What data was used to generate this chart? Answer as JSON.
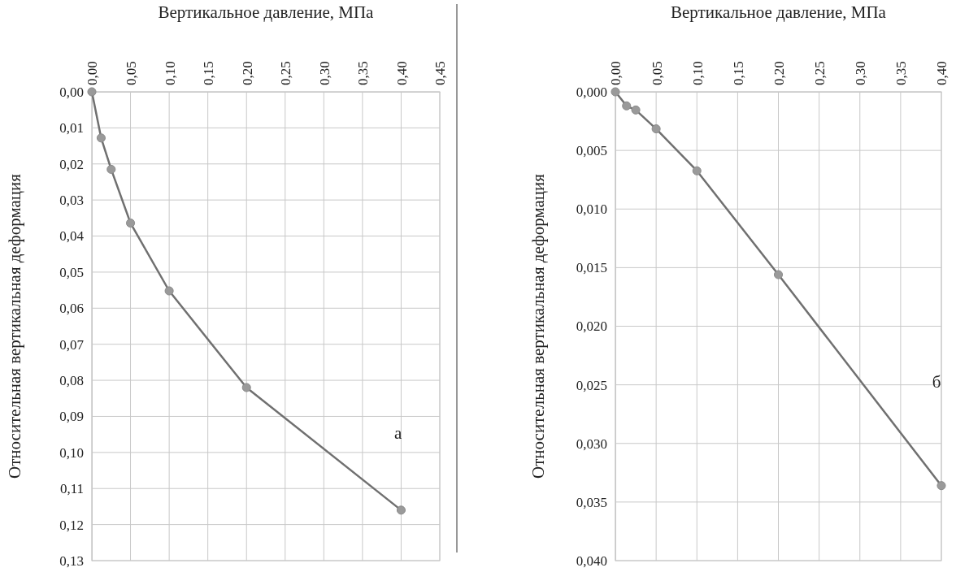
{
  "chart_data": [
    {
      "type": "line",
      "xlabel": "Вертикальное давление, МПа",
      "ylabel": "Относительная вертикальная деформация",
      "x": [
        0,
        0.012,
        0.025,
        0.05,
        0.1,
        0.2,
        0.4
      ],
      "series": [
        {
          "color": "#707070",
          "values": [
            0,
            0.0128,
            0.0215,
            0.0364,
            0.0552,
            0.082,
            0.116
          ]
        }
      ],
      "xlim": [
        0,
        0.45
      ],
      "xticks": [
        {
          "value": 0,
          "label": "0,00"
        },
        {
          "value": 0.05,
          "label": "0,05"
        },
        {
          "value": 0.1,
          "label": "0,10"
        },
        {
          "value": 0.15,
          "label": "0,15"
        },
        {
          "value": 0.2,
          "label": "0,20"
        },
        {
          "value": 0.25,
          "label": "0,25"
        },
        {
          "value": 0.3,
          "label": "0,30"
        },
        {
          "value": 0.35,
          "label": "0,35"
        },
        {
          "value": 0.4,
          "label": "0,40"
        },
        {
          "value": 0.45,
          "label": "0,45"
        }
      ],
      "ylim": [
        0.13,
        0
      ],
      "yticks": [
        {
          "value": 0,
          "label": "0,00"
        },
        {
          "value": 0.01,
          "label": "0,01"
        },
        {
          "value": 0.02,
          "label": "0,02"
        },
        {
          "value": 0.03,
          "label": "0,03"
        },
        {
          "value": 0.04,
          "label": "0,04"
        },
        {
          "value": 0.05,
          "label": "0,05"
        },
        {
          "value": 0.06,
          "label": "0,06"
        },
        {
          "value": 0.07,
          "label": "0,07"
        },
        {
          "value": 0.08,
          "label": "0,08"
        },
        {
          "value": 0.09,
          "label": "0,09"
        },
        {
          "value": 0.1,
          "label": "0,10"
        },
        {
          "value": 0.11,
          "label": "0,11"
        },
        {
          "value": 0.12,
          "label": "0,12"
        },
        {
          "value": 0.13,
          "label": "0,13"
        }
      ],
      "grid": true,
      "marker": "circle",
      "annotations": [
        "а"
      ]
    },
    {
      "type": "line",
      "xlabel": "Вертикальное давление, МПа",
      "ylabel": "Относительная вертикальная деформация",
      "x": [
        0,
        0.0137,
        0.025,
        0.05,
        0.1,
        0.2,
        0.4
      ],
      "series": [
        {
          "color": "#707070",
          "values": [
            0,
            0.0012,
            0.00155,
            0.00316,
            0.00674,
            0.0156,
            0.0336
          ]
        }
      ],
      "xlim": [
        0,
        0.4
      ],
      "xticks": [
        {
          "value": 0,
          "label": "0,00"
        },
        {
          "value": 0.05,
          "label": "0,05"
        },
        {
          "value": 0.1,
          "label": "0,10"
        },
        {
          "value": 0.15,
          "label": "0,15"
        },
        {
          "value": 0.2,
          "label": "0,20"
        },
        {
          "value": 0.25,
          "label": "0,25"
        },
        {
          "value": 0.3,
          "label": "0,30"
        },
        {
          "value": 0.35,
          "label": "0,35"
        },
        {
          "value": 0.4,
          "label": "0,40"
        }
      ],
      "ylim": [
        0.04,
        0
      ],
      "yticks": [
        {
          "value": 0,
          "label": "0,000"
        },
        {
          "value": 0.005,
          "label": "0,005"
        },
        {
          "value": 0.01,
          "label": "0,010"
        },
        {
          "value": 0.015,
          "label": "0,015"
        },
        {
          "value": 0.02,
          "label": "0,020"
        },
        {
          "value": 0.025,
          "label": "0,025"
        },
        {
          "value": 0.03,
          "label": "0,030"
        },
        {
          "value": 0.035,
          "label": "0,035"
        },
        {
          "value": 0.04,
          "label": "0,040"
        }
      ],
      "grid": true,
      "marker": "circle",
      "annotations": [
        "б"
      ]
    }
  ]
}
